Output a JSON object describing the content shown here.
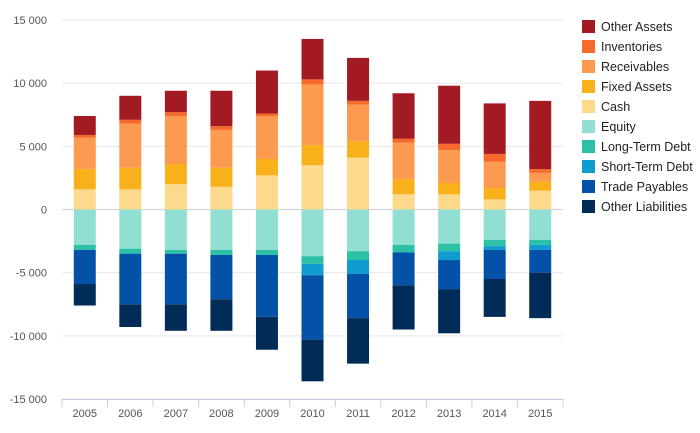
{
  "chart_data": {
    "type": "bar",
    "stacked": true,
    "categories": [
      "2005",
      "2006",
      "2007",
      "2008",
      "2009",
      "2010",
      "2011",
      "2012",
      "2013",
      "2014",
      "2015"
    ],
    "ylim": [
      -15000,
      15000
    ],
    "yticks": [
      {
        "value": 15000,
        "label": "15 000"
      },
      {
        "value": 10000,
        "label": "10 000"
      },
      {
        "value": 5000,
        "label": "5 000"
      },
      {
        "value": 0,
        "label": "0"
      },
      {
        "value": -5000,
        "label": "-5 000"
      },
      {
        "value": -10000,
        "label": "-10 000"
      },
      {
        "value": -15000,
        "label": "-15 000"
      }
    ],
    "grid": true,
    "legend_position": "right",
    "series": [
      {
        "name": "Other Assets",
        "color": "#a31b22",
        "values": [
          1500,
          1900,
          1700,
          2800,
          3400,
          3200,
          3400,
          3600,
          4600,
          4000,
          5400
        ]
      },
      {
        "name": "Inventories",
        "color": "#f66a2d",
        "values": [
          200,
          300,
          300,
          300,
          200,
          400,
          300,
          300,
          500,
          600,
          300
        ]
      },
      {
        "name": "Receivables",
        "color": "#fc9b4f",
        "values": [
          2500,
          3500,
          3800,
          3000,
          3400,
          4800,
          2900,
          2900,
          2600,
          2100,
          700
        ]
      },
      {
        "name": "Fixed Assets",
        "color": "#f8b01b",
        "values": [
          1600,
          1700,
          1600,
          1500,
          1300,
          1600,
          1300,
          1200,
          900,
          900,
          700
        ]
      },
      {
        "name": "Cash",
        "color": "#fdd98c",
        "values": [
          1600,
          1600,
          2000,
          1800,
          2700,
          3500,
          4100,
          1200,
          1200,
          800,
          1500
        ]
      },
      {
        "name": "Equity",
        "color": "#91dfd2",
        "values": [
          -2800,
          -3100,
          -3200,
          -3200,
          -3200,
          -3700,
          -3300,
          -2800,
          -2700,
          -2400,
          -2400
        ]
      },
      {
        "name": "Long-Term Debt",
        "color": "#2cc1a7",
        "values": [
          -400,
          -400,
          -300,
          -400,
          -400,
          -600,
          -700,
          -600,
          -600,
          -500,
          -400
        ]
      },
      {
        "name": "Short-Term Debt",
        "color": "#119cd0",
        "values": [
          0,
          0,
          0,
          0,
          0,
          -900,
          -1100,
          0,
          -700,
          -300,
          -400
        ]
      },
      {
        "name": "Trade Payables",
        "color": "#0452a7",
        "values": [
          -2700,
          -4000,
          -4000,
          -3500,
          -4900,
          -5100,
          -3500,
          -2600,
          -2300,
          -2300,
          -1800
        ]
      },
      {
        "name": "Other Liabilities",
        "color": "#022c58",
        "values": [
          -1700,
          -1800,
          -2100,
          -2500,
          -2600,
          -3300,
          -3600,
          -3500,
          -3500,
          -3000,
          -3600
        ]
      }
    ]
  }
}
